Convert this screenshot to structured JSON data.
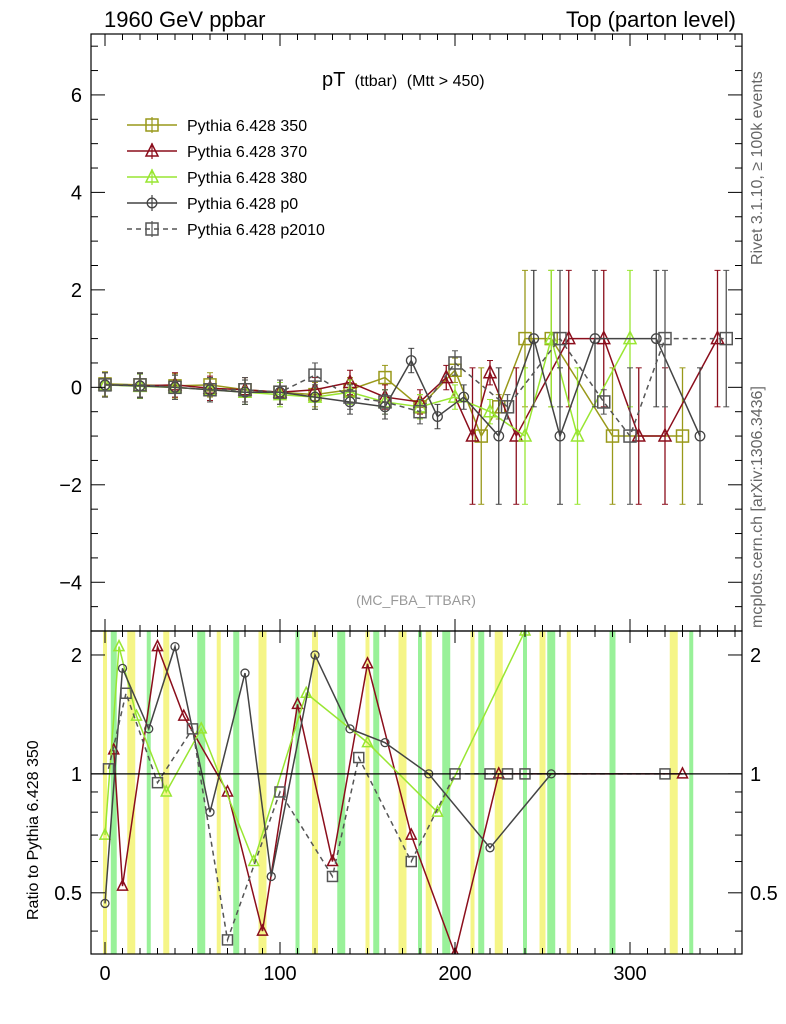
{
  "header": {
    "left": "1960 GeV ppbar",
    "right": "Top (parton level)"
  },
  "side_labels": {
    "rivet": "Rivet 3.1.10, ≥ 100k events",
    "mcplots": "mcplots.cern.ch [arXiv:1306.3436]"
  },
  "chart_data": [
    {
      "type": "line",
      "title_main": "pT",
      "title_sub": "(ttbar)",
      "title_cut": "(Mtt > 450)",
      "watermark": "(MC_FBA_TTBAR)",
      "xlabel": "",
      "ylabel": "",
      "xlim": [
        -8,
        364
      ],
      "ylim": [
        -5,
        7.25
      ],
      "x_ticks": [
        "0",
        "100",
        "200",
        "300"
      ],
      "y_ticks": [
        "−4",
        "−2",
        "0",
        "2",
        "4",
        "6"
      ],
      "legend_position": "top-left",
      "series": [
        {
          "name": "Pythia 6.428 350",
          "color": "#99991a",
          "marker": "square",
          "x": [
            0,
            20,
            40,
            60,
            80,
            100,
            120,
            140,
            160,
            180,
            200,
            215,
            225,
            240,
            255,
            290,
            330
          ],
          "y": [
            0.07,
            0.05,
            0.03,
            0.05,
            -0.05,
            -0.1,
            -0.15,
            -0.05,
            0.2,
            -0.4,
            0.35,
            -1.0,
            -0.4,
            1.0,
            1.0,
            -1.0,
            -1.0
          ]
        },
        {
          "name": "Pythia 6.428 370",
          "color": "#8b0e1c",
          "marker": "triangle",
          "x": [
            0,
            20,
            40,
            60,
            80,
            100,
            120,
            140,
            160,
            180,
            195,
            210,
            220,
            235,
            265,
            285,
            305,
            320,
            350
          ],
          "y": [
            0.05,
            0.03,
            0.05,
            -0.02,
            -0.05,
            -0.1,
            -0.05,
            0.1,
            -0.2,
            -0.3,
            0.2,
            -1.0,
            0.3,
            -1.0,
            1.0,
            1.0,
            -1.0,
            -1.0,
            1.0
          ]
        },
        {
          "name": "Pythia 6.428 380",
          "color": "#99e632",
          "marker": "triangle",
          "x": [
            0,
            20,
            40,
            60,
            80,
            100,
            120,
            140,
            160,
            180,
            200,
            220,
            240,
            255,
            270,
            300
          ],
          "y": [
            0.05,
            0.02,
            0.0,
            -0.05,
            -0.1,
            -0.15,
            -0.2,
            -0.1,
            -0.3,
            -0.4,
            -0.2,
            -0.5,
            -1.0,
            1.0,
            -1.0,
            1.0
          ]
        },
        {
          "name": "Pythia 6.428 p0",
          "color": "#444444",
          "marker": "circle",
          "x": [
            0,
            20,
            40,
            60,
            80,
            100,
            120,
            140,
            160,
            175,
            190,
            205,
            225,
            245,
            260,
            280,
            315,
            340
          ],
          "y": [
            0.05,
            0.03,
            0.0,
            -0.05,
            -0.1,
            -0.1,
            -0.2,
            -0.3,
            -0.4,
            0.55,
            -0.6,
            -0.2,
            -1.0,
            1.0,
            -1.0,
            1.0,
            1.0,
            -1.0
          ]
        },
        {
          "name": "Pythia 6.428 p2010",
          "color": "#555555",
          "marker": "square",
          "dashed": true,
          "x": [
            0,
            20,
            40,
            60,
            80,
            100,
            120,
            140,
            160,
            180,
            200,
            230,
            260,
            285,
            300,
            320,
            355
          ],
          "y": [
            0.05,
            0.05,
            0.0,
            -0.05,
            -0.05,
            -0.1,
            0.25,
            -0.2,
            -0.3,
            -0.5,
            0.5,
            -0.4,
            1.0,
            -0.3,
            -1.0,
            1.0,
            1.0
          ]
        }
      ]
    },
    {
      "type": "line",
      "ylabel": "Ratio to Pythia 6.428 350",
      "xlim": [
        -8,
        364
      ],
      "ylim": [
        0.35,
        2.3
      ],
      "x_ticks": [
        "0",
        "100",
        "200",
        "300"
      ],
      "y_ticks": [
        "0.5",
        "1",
        "2"
      ],
      "series": [
        {
          "name": "Pythia 6.428 370",
          "color": "#8b0e1c",
          "marker": "triangle",
          "x": [
            5,
            10,
            30,
            45,
            70,
            90,
            110,
            130,
            150,
            175,
            200,
            225,
            330
          ],
          "y": [
            1.15,
            0.52,
            2.1,
            1.4,
            0.9,
            0.4,
            1.5,
            0.6,
            1.9,
            0.7,
            0.35,
            1.0,
            1.0
          ]
        },
        {
          "name": "Pythia 6.428 380",
          "color": "#99e632",
          "marker": "triangle",
          "x": [
            0,
            8,
            18,
            35,
            55,
            85,
            115,
            150,
            190,
            240
          ],
          "y": [
            0.7,
            2.1,
            1.4,
            0.9,
            1.3,
            0.6,
            1.6,
            1.2,
            0.8,
            2.3
          ]
        },
        {
          "name": "Pythia 6.428 p0",
          "color": "#444444",
          "marker": "circle",
          "x": [
            0,
            10,
            25,
            40,
            60,
            80,
            95,
            120,
            140,
            160,
            185,
            220,
            255
          ],
          "y": [
            0.47,
            1.85,
            1.3,
            2.1,
            0.8,
            1.8,
            0.55,
            2.0,
            1.3,
            1.2,
            1.0,
            0.65,
            1.0
          ]
        },
        {
          "name": "Pythia 6.428 p2010",
          "color": "#555555",
          "marker": "square",
          "dashed": true,
          "x": [
            2,
            12,
            30,
            50,
            70,
            100,
            130,
            145,
            175,
            200,
            220,
            230,
            240,
            320
          ],
          "y": [
            1.03,
            1.6,
            0.95,
            1.3,
            0.38,
            0.9,
            0.55,
            1.1,
            0.6,
            1.0,
            1.0,
            1.0,
            1.0,
            1.0
          ]
        }
      ]
    }
  ]
}
